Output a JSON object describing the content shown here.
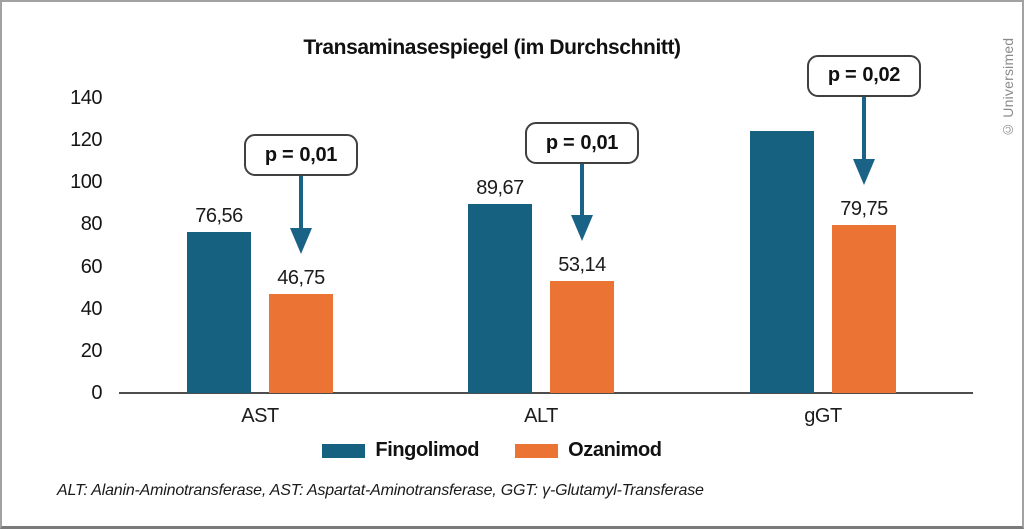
{
  "title": "Transaminasespiegel (im Durchschnitt)",
  "copyright": "© Universimed",
  "footnote": "ALT: Alanin-Aminotransferase, AST: Aspartat-Aminotransferase, GGT: γ-Glutamyl-Transferase",
  "colors": {
    "fingolimod": "#16617f",
    "ozanimod": "#eb7333",
    "arrow": "#1b6287",
    "axis": "#4d4d4d"
  },
  "legend": {
    "items": [
      {
        "label": "Fingolimod",
        "color": "#16617f"
      },
      {
        "label": "Ozanimod",
        "color": "#eb7333"
      }
    ]
  },
  "chart_data": {
    "type": "bar",
    "title": "Transaminasespiegel (im Durchschnitt)",
    "categories": [
      "AST",
      "ALT",
      "gGT"
    ],
    "series": [
      {
        "name": "Fingolimod",
        "color": "#16617f",
        "values": [
          76.56,
          89.67,
          124.5
        ],
        "labels": [
          "76,56",
          "89,67",
          ""
        ]
      },
      {
        "name": "Ozanimod",
        "color": "#eb7333",
        "values": [
          46.75,
          53.14,
          79.75
        ],
        "labels": [
          "46,75",
          "53,14",
          "79,75"
        ]
      }
    ],
    "y_ticks": [
      0,
      20,
      40,
      60,
      80,
      100,
      120,
      140
    ],
    "ylim": [
      0,
      140
    ],
    "xlabel": "",
    "ylabel": "",
    "grid": false,
    "legend_position": "bottom",
    "annotations": [
      {
        "prefix": "p =",
        "value": "0,01"
      },
      {
        "prefix": "p =",
        "value": "0,01"
      },
      {
        "prefix": "p =",
        "value": "0,02"
      }
    ]
  }
}
